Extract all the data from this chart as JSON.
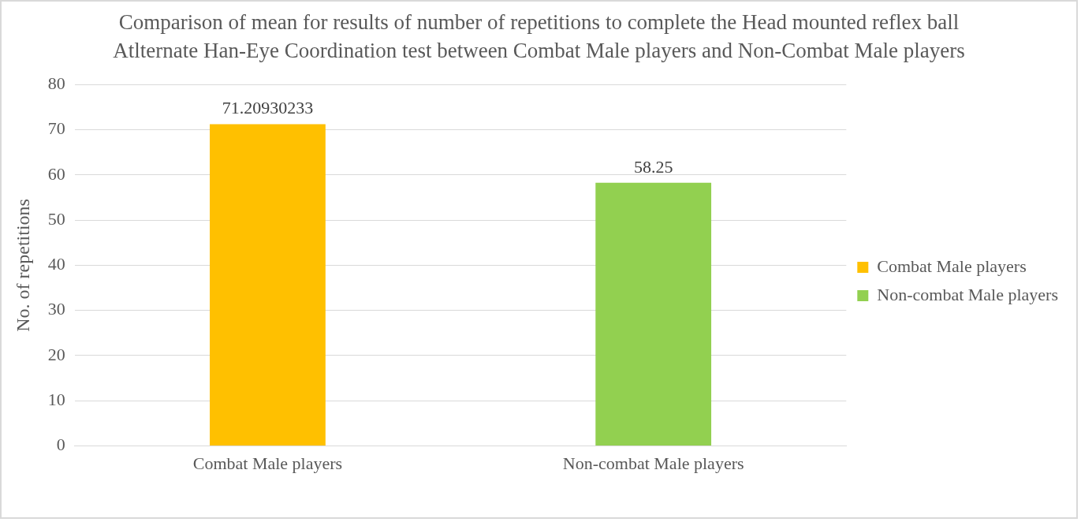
{
  "chart_data": {
    "type": "bar",
    "title": "Comparison of mean for results of number of repetitions to complete the Head mounted reflex ball Atlternate Han-Eye Coordination test between Combat Male players and Non-Combat Male players",
    "ylabel": "No. of repetitions",
    "categories": [
      "Combat Male players",
      "Non-combat Male players"
    ],
    "series": [
      {
        "name": "Combat Male players",
        "color": "#ffc000",
        "values": [
          71.20930233,
          null
        ]
      },
      {
        "name": "Non-combat Male players",
        "color": "#92d050",
        "values": [
          null,
          58.25
        ]
      }
    ],
    "ylim": [
      0,
      80
    ],
    "yticks": [
      0,
      10,
      20,
      30,
      40,
      50,
      60,
      70,
      80
    ],
    "grid": "y",
    "legend": "right",
    "data_labels": true
  }
}
